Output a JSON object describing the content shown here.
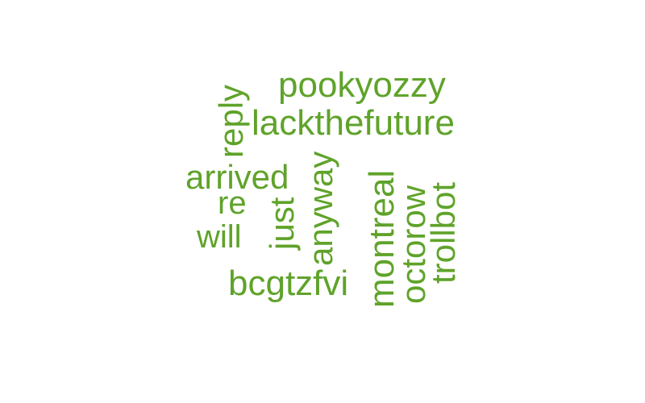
{
  "word_cloud": {
    "color": "#5fa32a",
    "words": [
      {
        "text": "pookyozzy",
        "orientation": "horizontal"
      },
      {
        "text": "lackthefuture",
        "orientation": "horizontal"
      },
      {
        "text": "reply",
        "orientation": "vertical"
      },
      {
        "text": "arrived",
        "orientation": "horizontal"
      },
      {
        "text": "re",
        "orientation": "horizontal"
      },
      {
        "text": "will",
        "orientation": "horizontal"
      },
      {
        "text": "just",
        "orientation": "vertical"
      },
      {
        "text": "anyway",
        "orientation": "vertical"
      },
      {
        "text": "montreal",
        "orientation": "vertical"
      },
      {
        "text": "octorow",
        "orientation": "vertical"
      },
      {
        "text": "trollbot",
        "orientation": "vertical"
      },
      {
        "text": "bcgtzfvi",
        "orientation": "horizontal"
      }
    ]
  }
}
